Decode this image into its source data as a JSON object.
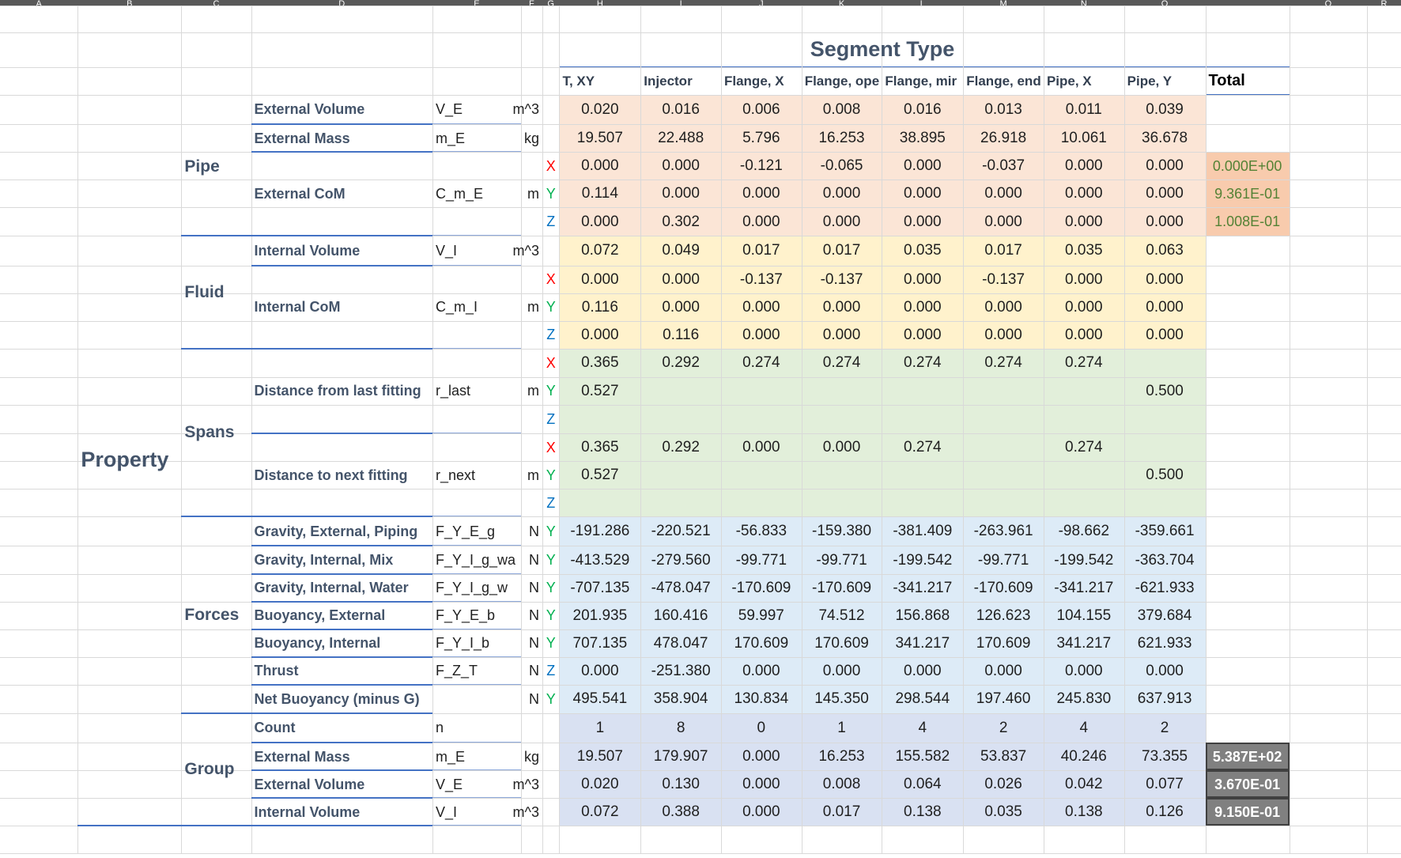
{
  "sheet": {
    "column_letters": [
      "A",
      "B",
      "C",
      "D",
      "E",
      "F",
      "G",
      "H",
      "I",
      "J",
      "K",
      "L",
      "M",
      "N",
      "O",
      "Q",
      "R"
    ]
  },
  "header": {
    "title": "Segment Type",
    "property_label": "Property",
    "total_label": "Total",
    "columns": [
      "T, XY",
      "Injector",
      "Flange, X",
      "Flange, ope",
      "Flange, mir",
      "Flange, end",
      "Pipe, X",
      "Pipe, Y"
    ]
  },
  "groups": {
    "pipe": "Pipe",
    "fluid": "Fluid",
    "spans": "Spans",
    "forces": "Forces",
    "group": "Group"
  },
  "colors": {
    "pipe_fill": "#fbe5d6",
    "fluid_fill": "#fff2cc",
    "spans_fill": "#e2efda",
    "forces_fill": "#ddebf7",
    "group_fill": "#d9e1f2",
    "total_orange": "#f8cbad",
    "total_gray": "#808080",
    "axis_x": "#ff0000",
    "axis_y": "#00b050",
    "axis_z": "#0070c0",
    "accent": "#4472c4"
  },
  "rows": [
    {
      "label": "External Volume",
      "sym": "V_E",
      "unit": "m^3",
      "axis": "",
      "v": [
        "0.020",
        "0.016",
        "0.006",
        "0.008",
        "0.016",
        "0.013",
        "0.011",
        "0.039"
      ],
      "total": ""
    },
    {
      "label": "External Mass",
      "sym": "m_E",
      "unit": "kg",
      "axis": "",
      "v": [
        "19.507",
        "22.488",
        "5.796",
        "16.253",
        "38.895",
        "26.918",
        "10.061",
        "36.678"
      ],
      "total": ""
    },
    {
      "label": "",
      "sym": "",
      "unit": "",
      "axis": "X",
      "v": [
        "0.000",
        "0.000",
        "-0.121",
        "-0.065",
        "0.000",
        "-0.037",
        "0.000",
        "0.000"
      ],
      "total": "0.000E+00"
    },
    {
      "label": "External CoM",
      "sym": "C_m_E",
      "unit": "m",
      "axis": "Y",
      "v": [
        "0.114",
        "0.000",
        "0.000",
        "0.000",
        "0.000",
        "0.000",
        "0.000",
        "0.000"
      ],
      "total": "9.361E-01"
    },
    {
      "label": "",
      "sym": "",
      "unit": "",
      "axis": "Z",
      "v": [
        "0.000",
        "0.302",
        "0.000",
        "0.000",
        "0.000",
        "0.000",
        "0.000",
        "0.000"
      ],
      "total": "1.008E-01"
    },
    {
      "label": "Internal Volume",
      "sym": "V_I",
      "unit": "m^3",
      "axis": "",
      "v": [
        "0.072",
        "0.049",
        "0.017",
        "0.017",
        "0.035",
        "0.017",
        "0.035",
        "0.063"
      ],
      "total": ""
    },
    {
      "label": "",
      "sym": "",
      "unit": "",
      "axis": "X",
      "v": [
        "0.000",
        "0.000",
        "-0.137",
        "-0.137",
        "0.000",
        "-0.137",
        "0.000",
        "0.000"
      ],
      "total": ""
    },
    {
      "label": "Internal CoM",
      "sym": "C_m_I",
      "unit": "m",
      "axis": "Y",
      "v": [
        "0.116",
        "0.000",
        "0.000",
        "0.000",
        "0.000",
        "0.000",
        "0.000",
        "0.000"
      ],
      "total": ""
    },
    {
      "label": "",
      "sym": "",
      "unit": "",
      "axis": "Z",
      "v": [
        "0.000",
        "0.116",
        "0.000",
        "0.000",
        "0.000",
        "0.000",
        "0.000",
        "0.000"
      ],
      "total": ""
    },
    {
      "label": "",
      "sym": "",
      "unit": "",
      "axis": "X",
      "v": [
        "0.365",
        "0.292",
        "0.274",
        "0.274",
        "0.274",
        "0.274",
        "0.274",
        ""
      ],
      "total": ""
    },
    {
      "label": "Distance from last fitting",
      "sym": "r_last",
      "unit": "m",
      "axis": "Y",
      "v": [
        "0.527",
        "",
        "",
        "",
        "",
        "",
        "",
        "0.500"
      ],
      "total": ""
    },
    {
      "label": "",
      "sym": "",
      "unit": "",
      "axis": "Z",
      "v": [
        "",
        "",
        "",
        "",
        "",
        "",
        "",
        ""
      ],
      "total": ""
    },
    {
      "label": "",
      "sym": "",
      "unit": "",
      "axis": "X",
      "v": [
        "0.365",
        "0.292",
        "0.000",
        "0.000",
        "0.274",
        "",
        "0.274",
        ""
      ],
      "total": ""
    },
    {
      "label": "Distance to next fitting",
      "sym": "r_next",
      "unit": "m",
      "axis": "Y",
      "v": [
        "0.527",
        "",
        "",
        "",
        "",
        "",
        "",
        "0.500"
      ],
      "total": ""
    },
    {
      "label": "",
      "sym": "",
      "unit": "",
      "axis": "Z",
      "v": [
        "",
        "",
        "",
        "",
        "",
        "",
        "",
        ""
      ],
      "total": ""
    },
    {
      "label": "Gravity, External, Piping",
      "sym": "F_Y_E_g",
      "unit": "N",
      "axis": "Y",
      "v": [
        "-191.286",
        "-220.521",
        "-56.833",
        "-159.380",
        "-381.409",
        "-263.961",
        "-98.662",
        "-359.661"
      ],
      "total": ""
    },
    {
      "label": "Gravity, Internal, Mix",
      "sym": "F_Y_I_g_wa",
      "unit": "N",
      "axis": "Y",
      "v": [
        "-413.529",
        "-279.560",
        "-99.771",
        "-99.771",
        "-199.542",
        "-99.771",
        "-199.542",
        "-363.704"
      ],
      "total": ""
    },
    {
      "label": "Gravity, Internal, Water",
      "sym": "F_Y_I_g_w",
      "unit": "N",
      "axis": "Y",
      "v": [
        "-707.135",
        "-478.047",
        "-170.609",
        "-170.609",
        "-341.217",
        "-170.609",
        "-341.217",
        "-621.933"
      ],
      "total": ""
    },
    {
      "label": "Buoyancy, External",
      "sym": "F_Y_E_b",
      "unit": "N",
      "axis": "Y",
      "v": [
        "201.935",
        "160.416",
        "59.997",
        "74.512",
        "156.868",
        "126.623",
        "104.155",
        "379.684"
      ],
      "total": ""
    },
    {
      "label": "Buoyancy, Internal",
      "sym": "F_Y_I_b",
      "unit": "N",
      "axis": "Y",
      "v": [
        "707.135",
        "478.047",
        "170.609",
        "170.609",
        "341.217",
        "170.609",
        "341.217",
        "621.933"
      ],
      "total": ""
    },
    {
      "label": "Thrust",
      "sym": "F_Z_T",
      "unit": "N",
      "axis": "Z",
      "v": [
        "0.000",
        "-251.380",
        "0.000",
        "0.000",
        "0.000",
        "0.000",
        "0.000",
        "0.000"
      ],
      "total": ""
    },
    {
      "label": "Net Buoyancy (minus G)",
      "sym": "",
      "unit": "N",
      "axis": "Y",
      "v": [
        "495.541",
        "358.904",
        "130.834",
        "145.350",
        "298.544",
        "197.460",
        "245.830",
        "637.913"
      ],
      "total": ""
    },
    {
      "label": "Count",
      "sym": "n",
      "unit": "",
      "axis": "",
      "v": [
        "1",
        "8",
        "0",
        "1",
        "4",
        "2",
        "4",
        "2"
      ],
      "total": ""
    },
    {
      "label": "External Mass",
      "sym": "m_E",
      "unit": "kg",
      "axis": "",
      "v": [
        "19.507",
        "179.907",
        "0.000",
        "16.253",
        "155.582",
        "53.837",
        "40.246",
        "73.355"
      ],
      "total": "5.387E+02"
    },
    {
      "label": "External Volume",
      "sym": "V_E",
      "unit": "m^3",
      "axis": "",
      "v": [
        "0.020",
        "0.130",
        "0.000",
        "0.008",
        "0.064",
        "0.026",
        "0.042",
        "0.077"
      ],
      "total": "3.670E-01"
    },
    {
      "label": "Internal Volume",
      "sym": "V_I",
      "unit": "m^3",
      "axis": "",
      "v": [
        "0.072",
        "0.388",
        "0.000",
        "0.017",
        "0.138",
        "0.035",
        "0.138",
        "0.126"
      ],
      "total": "9.150E-01"
    }
  ]
}
